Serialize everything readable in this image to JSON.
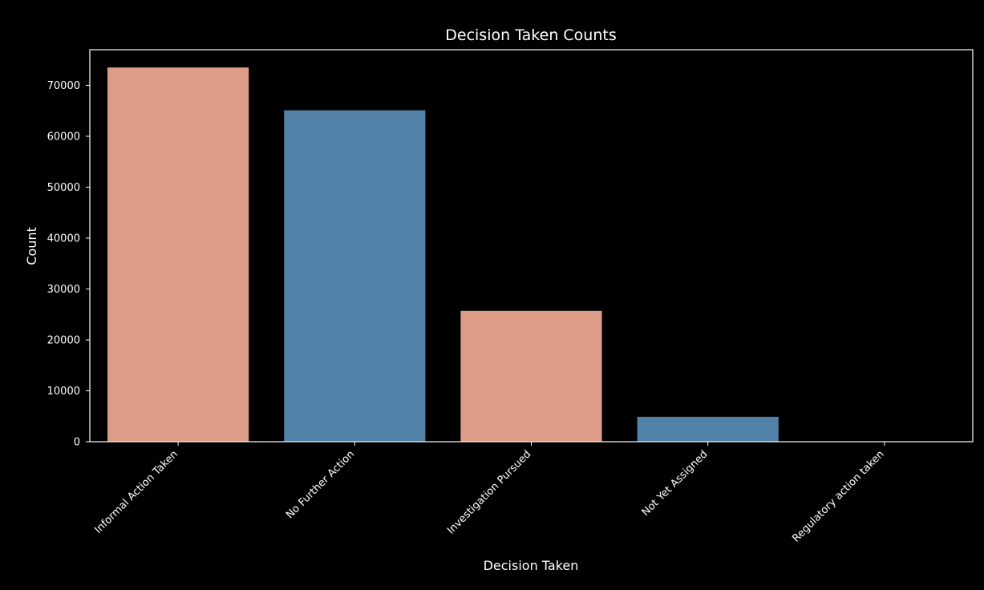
{
  "chart_data": {
    "type": "bar",
    "title": "Decision Taken Counts",
    "xlabel": "Decision Taken",
    "ylabel": "Count",
    "categories": [
      "Informal Action Taken",
      "No Further Action",
      "Investigation Pursued",
      "Not Yet Assigned",
      "Regulatory action taken"
    ],
    "values": [
      73500,
      65100,
      25700,
      4900,
      40
    ],
    "colors": [
      "#dd9c88",
      "#5282a8",
      "#dd9c88",
      "#5282a8",
      "#dd9c88"
    ],
    "ylim": [
      0,
      77000
    ],
    "yticks": [
      0,
      10000,
      20000,
      30000,
      40000,
      50000,
      60000,
      70000
    ],
    "ytick_labels": [
      "0",
      "10000",
      "20000",
      "30000",
      "40000",
      "50000",
      "60000",
      "70000"
    ],
    "grid": false,
    "background": "#000000",
    "foreground": "#ffffff"
  }
}
